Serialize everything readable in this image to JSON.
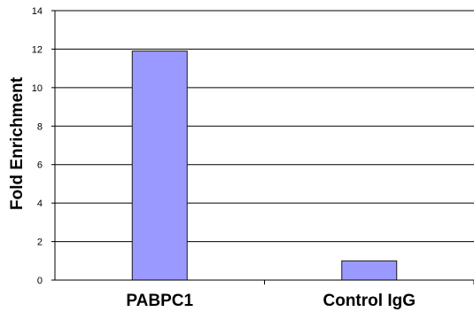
{
  "chart_data": {
    "type": "bar",
    "categories": [
      "PABPC1",
      "Control IgG"
    ],
    "values": [
      11.9,
      1.0
    ],
    "ylabel": "Fold Enrichment",
    "xlabel": "",
    "ylim": [
      0,
      14
    ],
    "yticks": [
      0,
      2,
      4,
      6,
      8,
      10,
      12,
      14
    ],
    "grid": true,
    "legend": "none",
    "bar_color": "#9999ff",
    "bar_border_color": "#1a1a1a",
    "grid_color": "#000000"
  }
}
